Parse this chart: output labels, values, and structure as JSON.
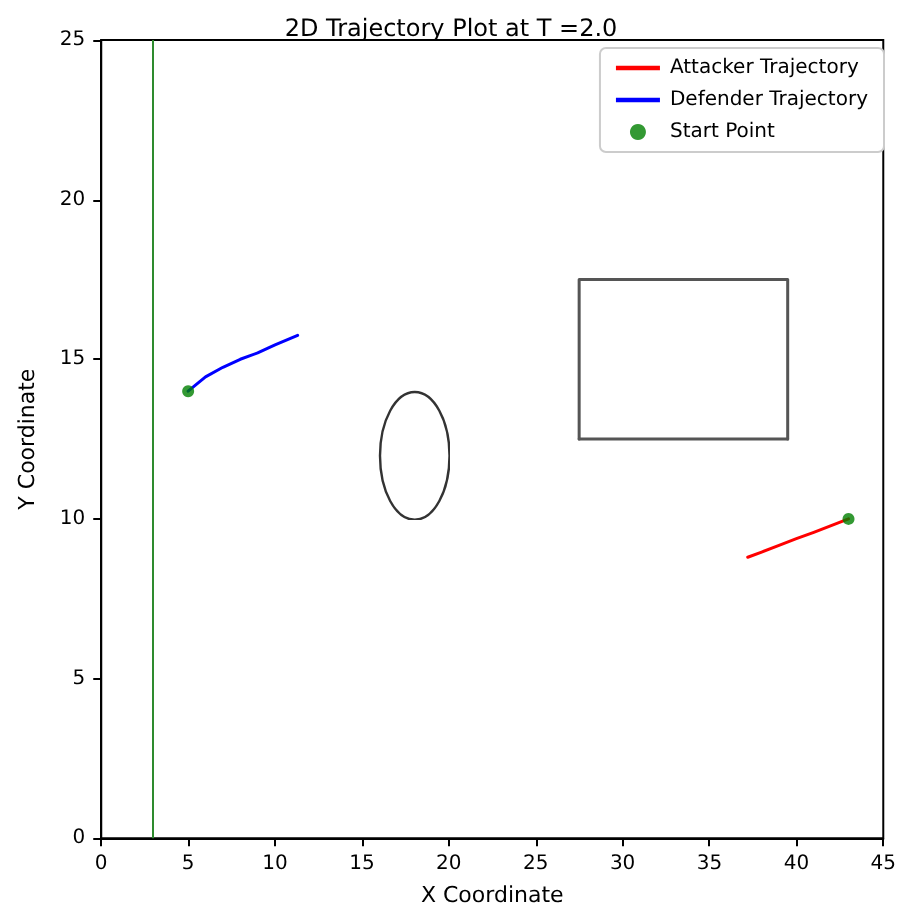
{
  "chart_data": {
    "type": "line",
    "title": "2D Trajectory Plot at T =2.0",
    "xlabel": "X Coordinate",
    "ylabel": "Y Coordinate",
    "xlim": [
      0,
      45
    ],
    "ylim": [
      0,
      25
    ],
    "xticks": [
      0,
      5,
      10,
      15,
      20,
      25,
      30,
      35,
      40,
      45
    ],
    "yticks": [
      0,
      5,
      10,
      15,
      20,
      25
    ],
    "grid": false,
    "legend": "top right",
    "marker": "none",
    "line_style": "solid",
    "series": [
      {
        "name": "Attacker Trajectory",
        "color": "#ff0000",
        "x": [
          43,
          42,
          41,
          40,
          39,
          38,
          37.2
        ],
        "values": [
          10,
          9.79,
          9.58,
          9.38,
          9.17,
          8.96,
          8.8
        ]
      },
      {
        "name": "Defender Trajectory",
        "color": "#0000ff",
        "x": [
          5,
          6,
          7,
          8,
          9,
          10,
          11.3
        ],
        "values": [
          14,
          14.45,
          14.75,
          15.0,
          15.2,
          15.45,
          15.75
        ]
      },
      {
        "name": "Start Point",
        "type": "scatter",
        "marker": "circle",
        "color": "#008000",
        "x": [
          5,
          43
        ],
        "values": [
          14,
          10
        ]
      },
      {
        "color": "#555555",
        "x": [
          27.5,
          27.5,
          39.5,
          39.5
        ],
        "values": [
          12.5,
          17.5,
          17.5,
          12.5
        ]
      },
      {
        "color": "#555555",
        "x": [
          27.5,
          39.5
        ],
        "values": [
          12.5,
          12.5
        ]
      }
    ],
    "ref_lines": [
      {
        "axis": "x",
        "value": 3,
        "color": "#2e8b2e"
      }
    ]
  }
}
